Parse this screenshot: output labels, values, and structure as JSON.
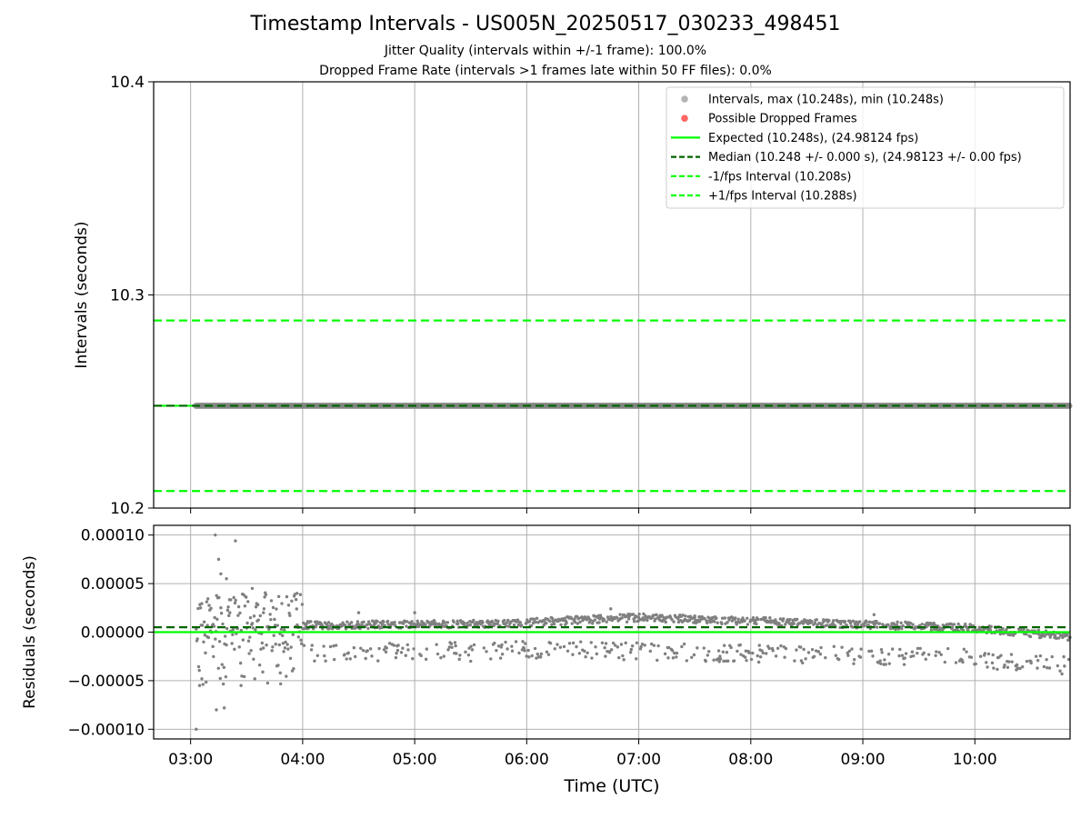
{
  "title": "Timestamp Intervals - US005N_20250517_030233_498451",
  "subtitle_1": "Jitter Quality (intervals within +/-1 frame): 100.0%",
  "subtitle_2": "Dropped Frame Rate (intervals >1 frames late within 50 FF files): 0.0%",
  "colors": {
    "intervals": "#808080",
    "dropped": "#ff0000",
    "expected": "#00ff00",
    "median": "#006400",
    "bounds": "#00ff00",
    "grid": "#b0b0b0"
  },
  "chart_data": [
    {
      "type": "scatter",
      "ylabel": "Intervals (seconds)",
      "ylim": [
        10.2,
        10.4
      ],
      "yticks": [
        10.2,
        10.3,
        10.4
      ],
      "ytick_labels": [
        "10.2",
        "10.3",
        "10.4"
      ],
      "xlim_hours": [
        2.67,
        10.85
      ],
      "grid": true,
      "legend_placement": "top-right",
      "legend": [
        "Intervals, max (10.248s), min (10.248s)",
        "Possible Dropped Frames",
        "Expected (10.248s), (24.98124 fps)",
        "Median (10.248 +/- 0.000 s), (24.98123 +/- 0.00 fps)",
        "-1/fps Interval (10.208s)",
        "+1/fps Interval (10.288s)"
      ],
      "series": [
        {
          "name": "Intervals, max (10.248s), min (10.248s)",
          "x_range": [
            "03:03",
            "10:50"
          ],
          "y": 10.248
        },
        {
          "name": "Possible Dropped Frames",
          "count": 0
        }
      ],
      "lines": {
        "expected": 10.248,
        "median": 10.248,
        "minus_1_fps": 10.208,
        "plus_1_fps": 10.288
      }
    },
    {
      "type": "scatter",
      "xlabel": "Time (UTC)",
      "ylabel": "Residuals (seconds)",
      "ylim": [
        -0.00011,
        0.00011
      ],
      "yticks": [
        -0.0001,
        -5e-05,
        0,
        5e-05,
        0.0001
      ],
      "ytick_labels": [
        "−0.00010",
        "−0.00005",
        "0.00000",
        "0.00005",
        "0.00010"
      ],
      "xticks_hours": [
        3,
        4,
        5,
        6,
        7,
        8,
        9,
        10
      ],
      "xtick_labels": [
        "03:00",
        "04:00",
        "05:00",
        "06:00",
        "07:00",
        "08:00",
        "09:00",
        "10:00"
      ],
      "grid": true,
      "expected_line": 0.0,
      "median_line": 5e-06,
      "residual_series": [
        {
          "hour": 3.05,
          "y": -0.0001
        },
        {
          "hour": 3.08,
          "y": -5.5e-05
        },
        {
          "hour": 3.1,
          "y": -4.8e-05
        },
        {
          "hour": 3.15,
          "y": 7e-06
        },
        {
          "hour": 3.2,
          "y": 8e-06
        },
        {
          "hour": 3.22,
          "y": 0.0001
        },
        {
          "hour": 3.23,
          "y": -8e-05
        },
        {
          "hour": 3.25,
          "y": 7.5e-05
        },
        {
          "hour": 3.27,
          "y": 6e-05
        },
        {
          "hour": 3.3,
          "y": -7.8e-05
        },
        {
          "hour": 3.32,
          "y": 5.5e-05
        },
        {
          "hour": 3.35,
          "y": 2e-05
        },
        {
          "hour": 3.4,
          "y": 9.4e-05
        },
        {
          "hour": 3.45,
          "y": -5.5e-05
        },
        {
          "hour": 3.55,
          "y": 4.5e-05
        },
        {
          "hour": 3.65,
          "y": 2e-05
        },
        {
          "hour": 3.8,
          "y": -4.2e-05
        },
        {
          "hour": 3.95,
          "y": 4e-05
        },
        {
          "hour": 4.5,
          "y": 2e-05
        },
        {
          "hour": 5.0,
          "y": 2e-05
        },
        {
          "hour": 5.5,
          "y": -3e-05
        },
        {
          "hour": 6.0,
          "y": 1e-05
        },
        {
          "hour": 6.5,
          "y": 1.2e-05
        },
        {
          "hour": 6.75,
          "y": 2.4e-05
        },
        {
          "hour": 7.0,
          "y": 1.5e-05
        },
        {
          "hour": 7.5,
          "y": 1.5e-05
        },
        {
          "hour": 8.0,
          "y": 1.2e-05
        },
        {
          "hour": 8.5,
          "y": 1e-05
        },
        {
          "hour": 9.0,
          "y": 8e-06
        },
        {
          "hour": 9.1,
          "y": 1.8e-05
        },
        {
          "hour": 9.5,
          "y": 5e-06
        },
        {
          "hour": 10.0,
          "y": 2e-06
        },
        {
          "hour": 10.5,
          "y": -3e-05
        },
        {
          "hour": 10.8,
          "y": -3.5e-05
        }
      ]
    }
  ]
}
